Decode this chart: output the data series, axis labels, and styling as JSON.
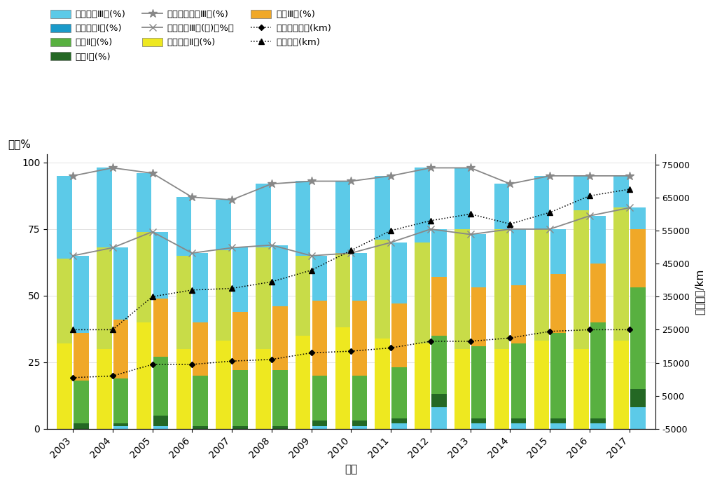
{
  "years": [
    2003,
    2004,
    2005,
    2006,
    2007,
    2008,
    2009,
    2010,
    2011,
    2012,
    2013,
    2014,
    2015,
    2016,
    2017
  ],
  "xn_class1": [
    0,
    0,
    0,
    0,
    0,
    0,
    0,
    0,
    0,
    0,
    0,
    0,
    0,
    0,
    0
  ],
  "xn_class2": [
    32,
    30,
    40,
    30,
    33,
    30,
    35,
    38,
    34,
    32,
    30,
    30,
    33,
    30,
    33
  ],
  "xn_class3": [
    32,
    38,
    34,
    35,
    34,
    38,
    30,
    28,
    37,
    38,
    45,
    45,
    42,
    52,
    50
  ],
  "xn_better3": [
    95,
    98,
    96,
    87,
    86,
    92,
    93,
    93,
    95,
    98,
    98,
    92,
    95,
    95,
    95
  ],
  "cj_class1": [
    2,
    1,
    4,
    1,
    1,
    1,
    2,
    2,
    2,
    5,
    2,
    2,
    2,
    2,
    7
  ],
  "cj_class2": [
    16,
    17,
    22,
    19,
    21,
    21,
    17,
    17,
    19,
    22,
    27,
    28,
    32,
    36,
    38
  ],
  "cj_class3": [
    18,
    22,
    22,
    20,
    22,
    24,
    28,
    28,
    24,
    22,
    22,
    22,
    22,
    22,
    22
  ],
  "cj_class_cyan_bottom": [
    0,
    1,
    1,
    0,
    0,
    0,
    1,
    1,
    2,
    8,
    2,
    2,
    2,
    2,
    8
  ],
  "cj_better3": [
    65,
    68,
    74,
    66,
    68,
    69,
    65,
    66,
    70,
    75,
    73,
    75,
    75,
    80,
    83
  ],
  "xn_length": [
    10500,
    11000,
    14500,
    14500,
    15500,
    16000,
    18000,
    18500,
    19500,
    21500,
    21500,
    22500,
    24500,
    25000,
    25000
  ],
  "cj_length": [
    25000,
    25000,
    35000,
    37000,
    37500,
    39500,
    43000,
    49000,
    55000,
    58000,
    60000,
    57000,
    60500,
    65500,
    67500
  ],
  "color_xn_class1": "#1A9ACA",
  "color_xn_class2": "#EEE820",
  "color_xn_class3": "#C8DC48",
  "color_xn_top": "#5CCAE8",
  "color_cj_class1": "#246824",
  "color_cj_class2": "#58B040",
  "color_cj_class3": "#F0A828",
  "color_cj_top": "#5CCAE8",
  "color_cj_cyan_bottom": "#5CCAE8",
  "bar_width": 0.38,
  "yticks_left": [
    0,
    25,
    50,
    75,
    100
  ],
  "ytick_labels_left": [
    "0",
    "25",
    "50",
    "75",
    "100"
  ],
  "yticks_right": [
    -5000,
    5000,
    15000,
    25000,
    35000,
    45000,
    55000,
    65000,
    75000
  ],
  "ytick_labels_right": [
    "-5000",
    "5000",
    "15000",
    "25000",
    "35000",
    "45000",
    "55000",
    "65000",
    "75000"
  ],
  "xlabel": "年份",
  "ylabel_left": "比例%",
  "ylabel_right": "评价河长/km",
  "legend_labels": [
    "西南诸河Ⅲ类(%)",
    "西南诸河Ⅰ类(%)",
    "长江Ⅱ类(%)",
    "长江Ⅰ类(%)",
    "西南诸河优于Ⅲ类(%)",
    "长江优于Ⅲ类(含)（%）",
    "西南诸河Ⅱ类(%)",
    "长江Ⅲ类(%)",
    "西南诸河河长(km)",
    "长江河长(km)"
  ]
}
